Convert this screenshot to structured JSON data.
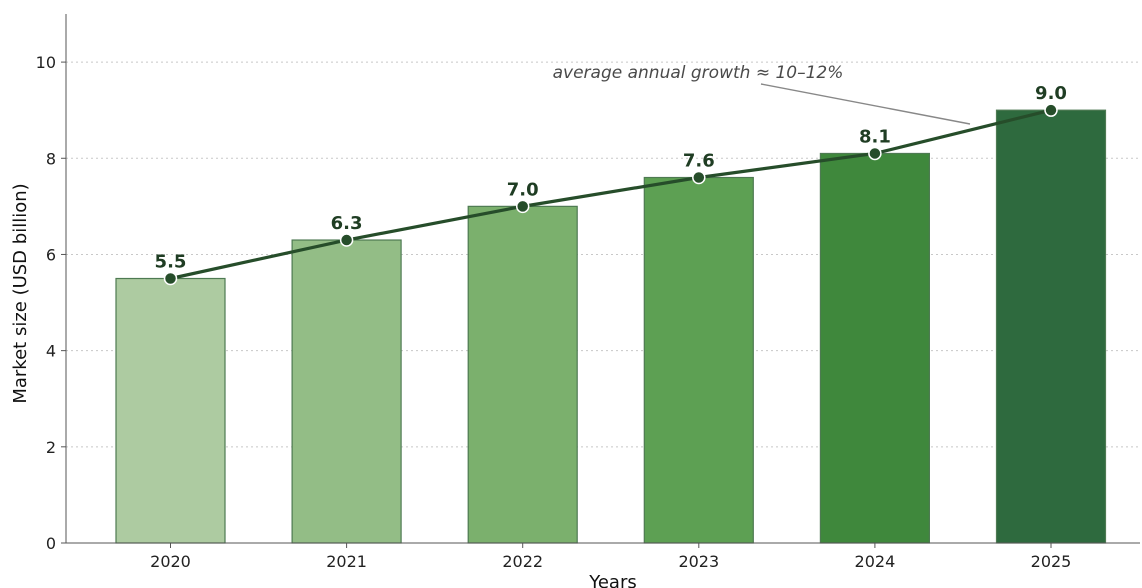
{
  "chart_data": {
    "type": "bar",
    "categories": [
      "2020",
      "2021",
      "2022",
      "2023",
      "2024",
      "2025"
    ],
    "values": [
      5.5,
      6.3,
      7.0,
      7.6,
      8.1,
      9.0
    ],
    "data_labels": [
      "5.5",
      "6.3",
      "7.0",
      "7.6",
      "8.1",
      "9.0"
    ],
    "overlay_line": {
      "type": "line",
      "values": [
        5.5,
        6.3,
        7.0,
        7.6,
        8.1,
        9.0
      ],
      "color": "#264d2a",
      "marker": "circle"
    },
    "title": "",
    "xlabel": "Years",
    "ylabel": "Market size (USD billion)",
    "ylim": [
      0,
      11
    ],
    "yticks": [
      0,
      2,
      4,
      6,
      8,
      10
    ],
    "ytick_labels": [
      "0",
      "2",
      "4",
      "6",
      "8",
      "10"
    ],
    "grid": "horizontal dotted",
    "legend": "none",
    "bar_colors": [
      "#adcba1",
      "#93bd86",
      "#7bb06d",
      "#5da053",
      "#3f883c",
      "#2e6a3e"
    ],
    "bar_edge_color": "#4e7a52",
    "annotation": {
      "text": "average annual growth ≈ 10–12%",
      "points_to": "2025"
    }
  }
}
